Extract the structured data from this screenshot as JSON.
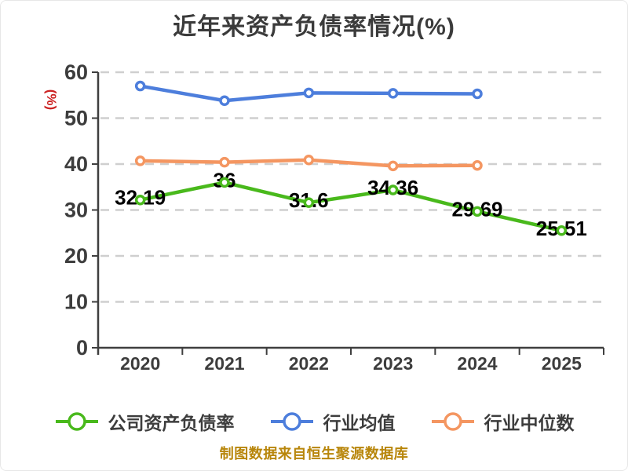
{
  "title": {
    "text": "近年来资产负债率情况(%)",
    "color": "#3b3b3b"
  },
  "y_axis_name": {
    "text": "(%)",
    "color": "#cc2222"
  },
  "footer": {
    "text": "制图数据来自恒生聚源数据库",
    "color": "#b8860b"
  },
  "colors": {
    "background": "#ffffff",
    "axis_line": "#3f3f3f",
    "tick_label": "#3d3d3d",
    "grid_line": "#cfcfcf",
    "data_label": "#000000",
    "legend_label": "#3d3d3d",
    "marker_fill": "#ffffff"
  },
  "chart_data": {
    "type": "line",
    "title": "近年来资产负债率情况(%)",
    "xlabel": "",
    "ylabel": "(%)",
    "categories": [
      "2020",
      "2021",
      "2022",
      "2023",
      "2024",
      "2025"
    ],
    "series": [
      {
        "name": "公司资产负债率",
        "color": "#49b91c",
        "values": [
          32.19,
          36,
          31.6,
          34.36,
          29.69,
          25.51
        ],
        "labels": [
          "32.19",
          "36",
          "31.6",
          "34.36",
          "29.69",
          "25.51"
        ],
        "show_labels": true
      },
      {
        "name": "行业均值",
        "color": "#4d7edc",
        "values": [
          57.0,
          53.8,
          55.5,
          55.4,
          55.3,
          null
        ],
        "labels": [],
        "show_labels": false
      },
      {
        "name": "行业中位数",
        "color": "#f49661",
        "values": [
          40.7,
          40.4,
          40.9,
          39.6,
          39.7,
          null
        ],
        "labels": [],
        "show_labels": false
      }
    ],
    "ylim": [
      0,
      60
    ],
    "y_ticks": [
      0,
      10,
      20,
      30,
      40,
      50,
      60
    ],
    "grid": "horizontal-dashed",
    "legend_position": "bottom",
    "marker_style": "white-filled-circle-colored-ring"
  }
}
